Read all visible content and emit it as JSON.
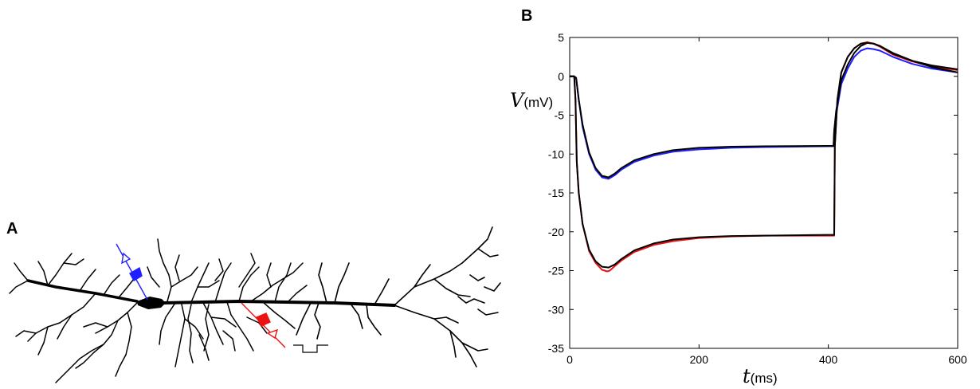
{
  "panels": {
    "a": {
      "label": "A",
      "colors": {
        "soma_electrode": "#1f1fff",
        "dendrite_electrode": "#ee1111",
        "neuron": "#000000"
      },
      "icons": [
        "recording-electrode-icon",
        "stimulating-electrode-icon",
        "current-step-icon"
      ]
    },
    "b": {
      "label": "B"
    }
  },
  "chart_data": {
    "type": "line",
    "xlabel": {
      "var": "t",
      "unit": "(ms)"
    },
    "ylabel": {
      "var": "V",
      "unit": "(mV)"
    },
    "xlim": [
      0,
      600
    ],
    "ylim": [
      -35,
      5
    ],
    "xticks": [
      0,
      200,
      400,
      600
    ],
    "yticks": [
      5,
      0,
      -5,
      -10,
      -15,
      -20,
      -25,
      -30,
      -35
    ],
    "xtick_labels": [
      "0",
      "200",
      "400",
      "600"
    ],
    "ytick_labels": [
      "5",
      "0",
      "-5",
      "-10",
      "-15",
      "-20",
      "-25",
      "-30",
      "-35"
    ],
    "grid": false,
    "legend": "none",
    "series": [
      {
        "color": "#1f1fff",
        "x": [
          0,
          7,
          10,
          14,
          20,
          30,
          40,
          50,
          60,
          70,
          80,
          100,
          130,
          160,
          200,
          250,
          300,
          350,
          400,
          408,
          409,
          412,
          420,
          430,
          440,
          450,
          460,
          470,
          480,
          500,
          530,
          560,
          600
        ],
        "y": [
          0,
          0,
          -0.2,
          -3,
          -6.5,
          -10,
          -12,
          -13,
          -13.2,
          -12.7,
          -12,
          -11,
          -10.2,
          -9.7,
          -9.4,
          -9.2,
          -9.1,
          -9.05,
          -9,
          -9,
          -7,
          -5,
          -1,
          1,
          2.5,
          3.3,
          3.6,
          3.5,
          3.3,
          2.5,
          1.6,
          1,
          0.5
        ]
      },
      {
        "color": "#ee1111",
        "x": [
          0,
          7,
          9,
          11,
          14,
          20,
          30,
          40,
          50,
          58,
          62,
          70,
          80,
          100,
          130,
          160,
          200,
          250,
          300,
          350,
          400,
          409,
          410,
          414,
          420,
          430,
          440,
          450,
          460,
          470,
          480,
          500,
          530,
          560,
          600
        ],
        "y": [
          0,
          0,
          -3,
          -11,
          -15,
          -19,
          -22.5,
          -24,
          -24.9,
          -25.1,
          -25,
          -24.4,
          -23.7,
          -22.6,
          -21.7,
          -21.2,
          -20.8,
          -20.6,
          -20.5,
          -20.5,
          -20.5,
          -20.5,
          -9,
          -3,
          0.5,
          2.5,
          3.6,
          4.2,
          4.4,
          4.2,
          3.8,
          2.8,
          1.9,
          1.3,
          0.8
        ]
      },
      {
        "color": "#000000",
        "x": [
          0,
          7,
          10,
          14,
          20,
          30,
          40,
          50,
          60,
          70,
          80,
          100,
          130,
          160,
          200,
          250,
          300,
          350,
          400,
          408,
          409,
          412,
          420,
          430,
          440,
          450,
          460,
          470,
          480,
          500,
          530,
          560,
          600
        ],
        "y": [
          0,
          0,
          -0.2,
          -3,
          -6.2,
          -9.8,
          -11.8,
          -12.8,
          -13,
          -12.5,
          -11.8,
          -10.8,
          -10,
          -9.5,
          -9.2,
          -9.05,
          -9,
          -8.98,
          -8.95,
          -8.95,
          -7,
          -4.5,
          -0.5,
          1.5,
          3,
          3.9,
          4.3,
          4.2,
          3.9,
          3,
          2,
          1.2,
          0.5
        ]
      },
      {
        "color": "#000000",
        "x": [
          0,
          7,
          9,
          11,
          14,
          20,
          30,
          40,
          50,
          60,
          70,
          80,
          100,
          130,
          160,
          200,
          250,
          300,
          350,
          400,
          409,
          410,
          414,
          420,
          430,
          440,
          450,
          460,
          470,
          480,
          500,
          530,
          560,
          600
        ],
        "y": [
          0,
          0,
          -3,
          -11,
          -15,
          -19,
          -22.3,
          -23.8,
          -24.5,
          -24.6,
          -24.2,
          -23.5,
          -22.4,
          -21.5,
          -21,
          -20.7,
          -20.55,
          -20.5,
          -20.45,
          -20.4,
          -20.4,
          -9,
          -3,
          0.5,
          2.5,
          3.6,
          4.2,
          4.3,
          4.2,
          3.9,
          2.9,
          2,
          1.4,
          0.9
        ]
      }
    ]
  }
}
